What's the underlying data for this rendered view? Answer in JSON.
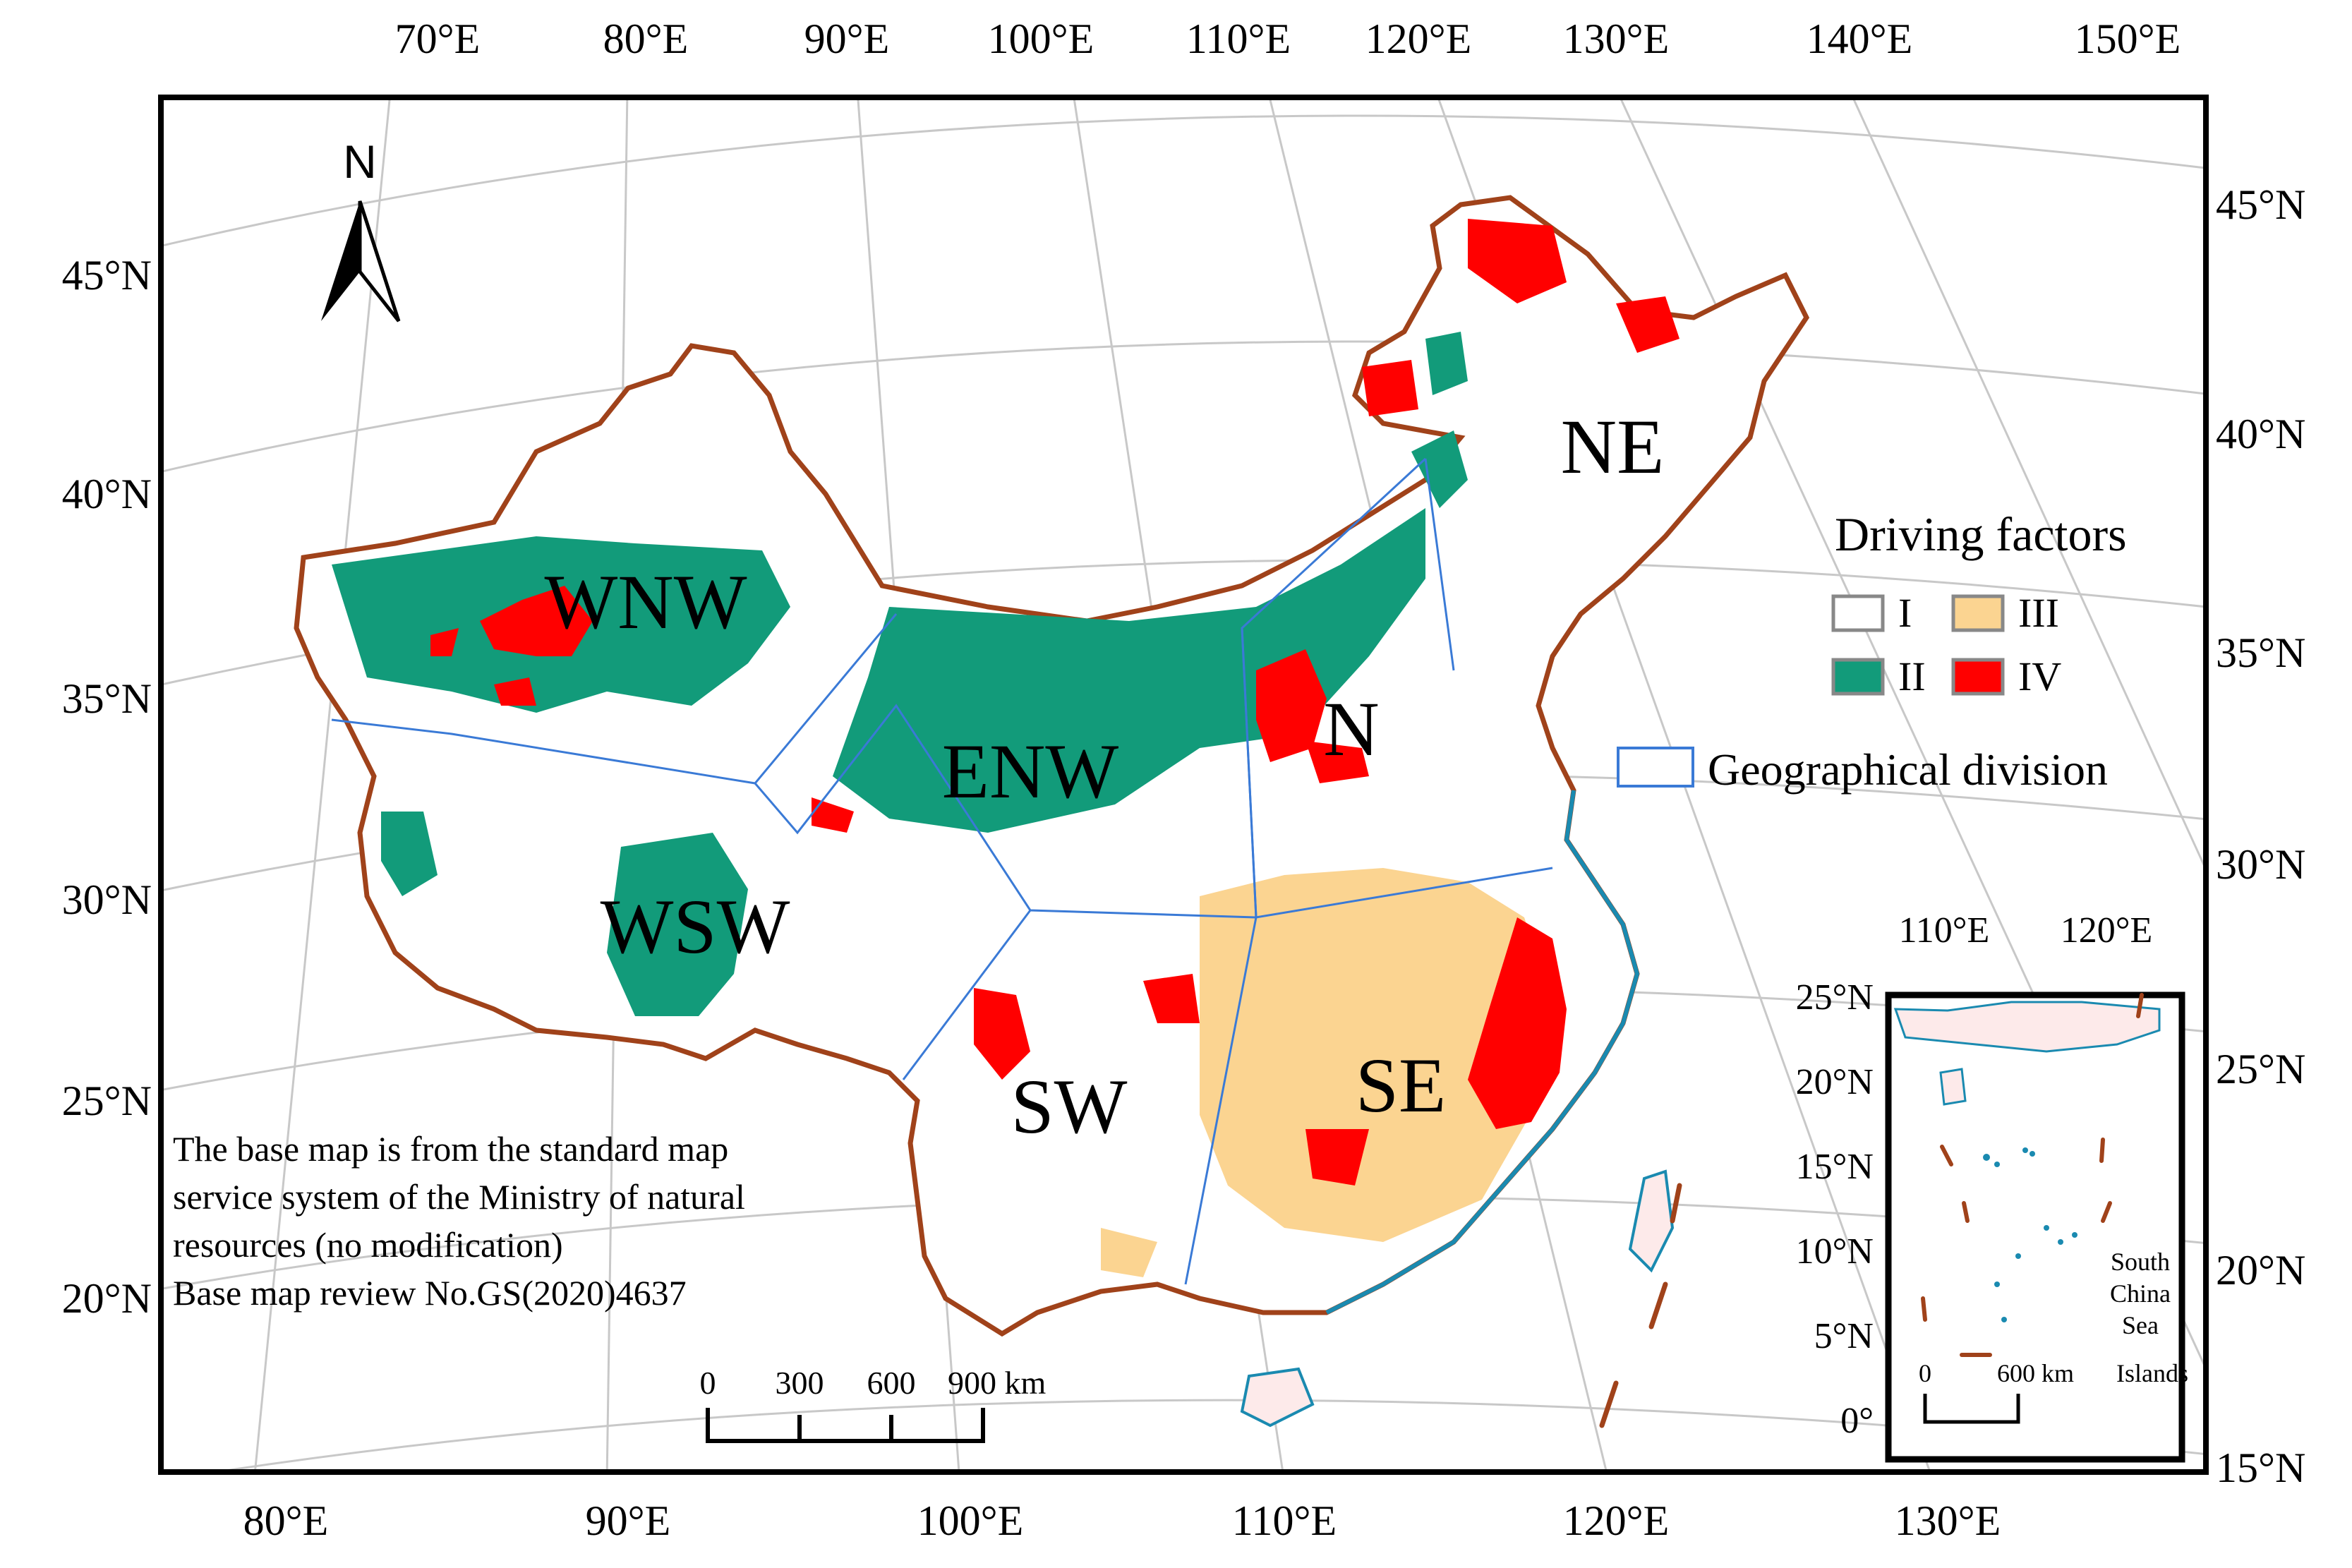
{
  "top_lon_labels": [
    "70°E",
    "80°E",
    "90°E",
    "100°E",
    "110°E",
    "120°E",
    "130°E",
    "140°E",
    "150°E"
  ],
  "bottom_lon_labels": [
    "80°E",
    "90°E",
    "100°E",
    "110°E",
    "120°E",
    "130°E"
  ],
  "left_lat_labels": [
    "45°N",
    "40°N",
    "35°N",
    "30°N",
    "25°N",
    "20°N"
  ],
  "right_lat_labels": [
    "45°N",
    "40°N",
    "35°N",
    "30°N",
    "25°N",
    "20°N",
    "15°N"
  ],
  "regions": [
    "WNW",
    "ENW",
    "N",
    "NE",
    "WSW",
    "SW",
    "SE"
  ],
  "north_arrow": {
    "label": "N",
    "icon": "north-arrow-icon"
  },
  "legend": {
    "title": "Driving factors",
    "items": [
      {
        "label": "I",
        "color": "#ffffff"
      },
      {
        "label": "III",
        "color": "#fbd491"
      },
      {
        "label": "II",
        "color": "#129b7a"
      },
      {
        "label": "IV",
        "color": "#ff0000"
      }
    ],
    "division_label": "Geographical division",
    "division_color": "#3a7ad6"
  },
  "scale_bar": {
    "labels": [
      "0",
      "300",
      "600",
      "900 km"
    ]
  },
  "note": [
    "The base map is from the standard map",
    "service system of the Ministry of natural",
    "resources (no modification)",
    "Base map review No.GS(2020)4637"
  ],
  "inset": {
    "lon_labels": [
      "110°E",
      "120°E"
    ],
    "lat_labels": [
      "25°N",
      "20°N",
      "15°N",
      "10°N",
      "5°N",
      "0°"
    ],
    "islands_label": [
      "South",
      "China",
      "Sea",
      "Islands"
    ],
    "scale_labels": [
      "0",
      "600 km"
    ]
  },
  "colors": {
    "border": "#a0421a",
    "coast": "#1a8ab0",
    "grid": "#c8c8c8"
  }
}
